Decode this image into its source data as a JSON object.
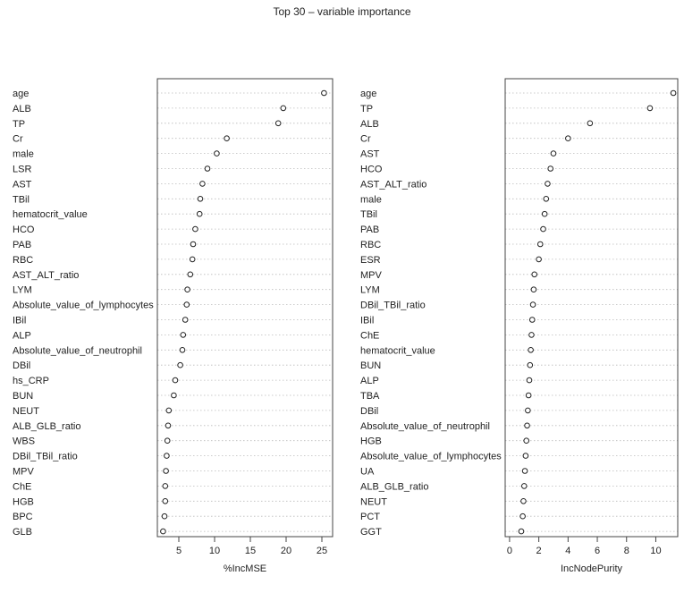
{
  "title": "Top 30 – variable importance",
  "chart_data": [
    {
      "type": "scatter",
      "xlabel": "%IncMSE",
      "xlim": [
        2,
        26.5
      ],
      "xticks": [
        5,
        10,
        15,
        20,
        25
      ],
      "grid": true,
      "points": [
        {
          "label": "age",
          "value": 25.3
        },
        {
          "label": "ALB",
          "value": 19.6
        },
        {
          "label": "TP",
          "value": 18.9
        },
        {
          "label": "Cr",
          "value": 11.7
        },
        {
          "label": "male",
          "value": 10.3
        },
        {
          "label": "LSR",
          "value": 9.0
        },
        {
          "label": "AST",
          "value": 8.3
        },
        {
          "label": "TBil",
          "value": 8.0
        },
        {
          "label": "hematocrit_value",
          "value": 7.9
        },
        {
          "label": "HCO",
          "value": 7.3
        },
        {
          "label": "PAB",
          "value": 7.0
        },
        {
          "label": "RBC",
          "value": 6.9
        },
        {
          "label": "AST_ALT_ratio",
          "value": 6.6
        },
        {
          "label": "LYM",
          "value": 6.2
        },
        {
          "label": "Absolute_value_of_lymphocytes",
          "value": 6.1
        },
        {
          "label": "IBil",
          "value": 5.9
        },
        {
          "label": "ALP",
          "value": 5.6
        },
        {
          "label": "Absolute_value_of_neutrophil",
          "value": 5.5
        },
        {
          "label": "DBil",
          "value": 5.2
        },
        {
          "label": "hs_CRP",
          "value": 4.5
        },
        {
          "label": "BUN",
          "value": 4.3
        },
        {
          "label": "NEUT",
          "value": 3.6
        },
        {
          "label": "ALB_GLB_ratio",
          "value": 3.5
        },
        {
          "label": "WBS",
          "value": 3.4
        },
        {
          "label": "DBil_TBil_ratio",
          "value": 3.3
        },
        {
          "label": "MPV",
          "value": 3.2
        },
        {
          "label": "ChE",
          "value": 3.1
        },
        {
          "label": "HGB",
          "value": 3.1
        },
        {
          "label": "BPC",
          "value": 3.0
        },
        {
          "label": "GLB",
          "value": 2.8
        }
      ]
    },
    {
      "type": "scatter",
      "xlabel": "IncNodePurity",
      "xlim": [
        -0.3,
        11.5
      ],
      "xticks": [
        0,
        2,
        4,
        6,
        8,
        10
      ],
      "grid": true,
      "points": [
        {
          "label": "age",
          "value": 11.2
        },
        {
          "label": "TP",
          "value": 9.6
        },
        {
          "label": "ALB",
          "value": 5.5
        },
        {
          "label": "Cr",
          "value": 4.0
        },
        {
          "label": "AST",
          "value": 3.0
        },
        {
          "label": "HCO",
          "value": 2.8
        },
        {
          "label": "AST_ALT_ratio",
          "value": 2.6
        },
        {
          "label": "male",
          "value": 2.5
        },
        {
          "label": "TBil",
          "value": 2.4
        },
        {
          "label": "PAB",
          "value": 2.3
        },
        {
          "label": "RBC",
          "value": 2.1
        },
        {
          "label": "ESR",
          "value": 2.0
        },
        {
          "label": "MPV",
          "value": 1.7
        },
        {
          "label": "LYM",
          "value": 1.65
        },
        {
          "label": "DBil_TBil_ratio",
          "value": 1.6
        },
        {
          "label": "IBil",
          "value": 1.55
        },
        {
          "label": "ChE",
          "value": 1.5
        },
        {
          "label": "hematocrit_value",
          "value": 1.45
        },
        {
          "label": "BUN",
          "value": 1.4
        },
        {
          "label": "ALP",
          "value": 1.35
        },
        {
          "label": "TBA",
          "value": 1.3
        },
        {
          "label": "DBil",
          "value": 1.25
        },
        {
          "label": "Absolute_value_of_neutrophil",
          "value": 1.2
        },
        {
          "label": "HGB",
          "value": 1.15
        },
        {
          "label": "Absolute_value_of_lymphocytes",
          "value": 1.1
        },
        {
          "label": "UA",
          "value": 1.05
        },
        {
          "label": "ALB_GLB_ratio",
          "value": 1.0
        },
        {
          "label": "NEUT",
          "value": 0.95
        },
        {
          "label": "PCT",
          "value": 0.9
        },
        {
          "label": "GGT",
          "value": 0.8
        }
      ]
    }
  ]
}
